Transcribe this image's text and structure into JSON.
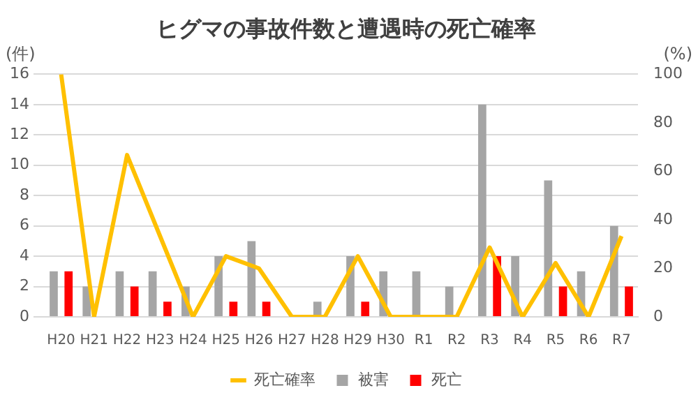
{
  "chart_data": {
    "type": "bar",
    "title": "ヒグマの事故件数と遭遇時の死亡確率",
    "ylabel": "(件)",
    "y2label": "(%)",
    "categories": [
      "H20",
      "H21",
      "H22",
      "H23",
      "H24",
      "H25",
      "H26",
      "H27",
      "H28",
      "H29",
      "H30",
      "R1",
      "R2",
      "R3",
      "R4",
      "R5",
      "R6",
      "R7"
    ],
    "series": [
      {
        "name": "被害",
        "color": "#a5a5a5",
        "values": [
          3,
          2,
          3,
          3,
          2,
          4,
          5,
          0,
          1,
          4,
          3,
          3,
          2,
          14,
          4,
          9,
          3,
          6
        ]
      },
      {
        "name": "死亡",
        "color": "#ff0000",
        "values": [
          3,
          0,
          2,
          1,
          0,
          1,
          1,
          0,
          0,
          1,
          0,
          0,
          0,
          4,
          0,
          2,
          0,
          2
        ]
      },
      {
        "name": "死亡確率",
        "type": "line",
        "axis": "y2",
        "color": "#ffc000",
        "values": [
          100,
          0,
          66.7,
          33.3,
          0,
          25,
          20,
          0,
          0,
          25,
          0,
          0,
          0,
          28.6,
          0,
          22.2,
          0,
          33.3
        ]
      }
    ],
    "ylim": [
      0,
      16
    ],
    "yticks": [
      0,
      2,
      4,
      6,
      8,
      10,
      12,
      14,
      16
    ],
    "y2lim": [
      0,
      100
    ],
    "y2ticks": [
      0,
      20,
      40,
      60,
      80,
      100
    ],
    "grid": "y",
    "legend": "bottom",
    "marker": "none"
  }
}
